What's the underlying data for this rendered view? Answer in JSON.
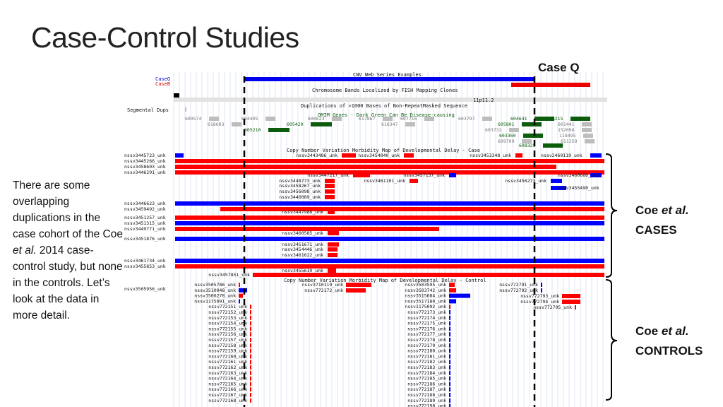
{
  "slide": {
    "title": "Case-Control Studies",
    "body_text_1": "There are some overlapping duplications in the case cohort of the Coe ",
    "body_text_et_al": "et al.",
    "body_text_2": " 2014 case-control study, but none in the controls.  Let’s look at the data in more detail.",
    "case_q_label": "Case Q",
    "cases_label_name": "Coe ",
    "cases_label_etal": "et al.",
    "cases_label_group": "CASES",
    "controls_label_name": "Coe ",
    "controls_label_etal": "et al.",
    "controls_label_group": "CONTROLS"
  },
  "colors": {
    "duplication": "#ff0000",
    "deletion": "#0000ff",
    "omim_green": "#0b5d0b",
    "gene_gray": "#bdbdbd",
    "grid_line": "#dfe5f2"
  },
  "browser": {
    "top_tracks": [
      {
        "name": "CaseQ",
        "color": "#0000cc"
      },
      {
        "name": "CaseB",
        "color": "#cc0000"
      }
    ],
    "segmental_label": "Segmental Dups",
    "headers": {
      "cnv_series": "CNV Web Series Examples",
      "chrom_bands": "Chromosome Bands Localized by FISH Mapping Clones",
      "band": "11p11.2",
      "duplications": "Duplications of >1000 Bases of Non-RepeatMasked Sequence",
      "omim": "OMIM Genes - Dark Green Can Be Disease-causing",
      "case_map": "Copy Number Variation Morbidity Map of Developmental Delay - Case",
      "control_map": "Copy Number Variation Morbidity Map of Developmental Delay - Control"
    },
    "omim_ids": [
      "609574",
      "616603",
      "604405",
      "605420",
      "605210",
      "600623",
      "617867",
      "616347",
      "607716",
      "603797",
      "604641",
      "605801",
      "603732",
      "603360",
      "609709",
      "608325",
      "616215",
      "601441",
      "152098",
      "118495",
      "611359"
    ],
    "case_left_labels": [
      "nssv3445723_unk",
      "nssv3445266_unk",
      "nssv3458603_unk",
      "nssv3446291_unk",
      "nssv3446623_unk",
      "nssv3459492_unk",
      "nssv3451257_unk",
      "nssv3451315_unk",
      "nssv3449771_unk",
      "nssv3451876_unk",
      "nssv3461734_unk",
      "nssv3455853_unk"
    ],
    "case_inline_labels": [
      "nssv3443486_unk",
      "nssv3454040_unk",
      "nssv3453348_unk",
      "nssv3460119_unk",
      "nssv3447217_unk",
      "nssv3457137_unk",
      "nssv3460686_unk",
      "nssv3448773_unk",
      "nssv3461101_unk",
      "nssv3456273_unk",
      "nssv3458267_unk",
      "nssv3455490_unk",
      "nssv3456098_unk",
      "nssv3446089_unk",
      "nssv3447988_unk",
      "nssv3460585_unk",
      "nssv3451671_unk",
      "nssv3454446_unk",
      "nssv3461622_unk",
      "nssv3455619_unk",
      "nssv3457851_unk"
    ],
    "control_left_label": "nssv3505956_unk",
    "control_labels_left": [
      "nssv3505786_unk",
      "nssv3510048_unk",
      "nssv3506278_unk",
      "nssv1175091_unk",
      "nssv772151_unk",
      "nssv772152_unk",
      "nssv772153_unk",
      "nssv772154_unk",
      "nssv772155_unk",
      "nssv772156_unk",
      "nssv772157_unk",
      "nssv772158_unk",
      "nssv772159_unk",
      "nssv772160_unk",
      "nssv772161_unk",
      "nssv772162_unk",
      "nssv772163_unk",
      "nssv772164_unk",
      "nssv772165_unk",
      "nssv772166_unk",
      "nssv772167_unk",
      "nssv772168_unk"
    ],
    "control_labels_mid": [
      "nssv3710119_unk",
      "nssv772172_unk"
    ],
    "control_labels_right": [
      "nssv3503595_unk",
      "nssv3503742_unk",
      "nssv3515684_unk",
      "nssv3517180_unk",
      "nssv1175092_unk",
      "nssv772173_unk",
      "nssv772174_unk",
      "nssv772175_unk",
      "nssv772176_unk",
      "nssv772177_unk",
      "nssv772178_unk",
      "nssv772179_unk",
      "nssv772180_unk",
      "nssv772181_unk",
      "nssv772182_unk",
      "nssv772183_unk",
      "nssv772184_unk",
      "nssv772185_unk",
      "nssv772186_unk",
      "nssv772187_unk",
      "nssv772188_unk",
      "nssv772189_unk",
      "nssv772190_unk"
    ],
    "control_labels_far": [
      "nssv772791_unk",
      "nssv772792_unk",
      "nssv772793_unk",
      "nssv772794_unk",
      "nssv772795_unk"
    ]
  }
}
